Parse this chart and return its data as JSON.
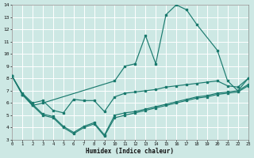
{
  "xlabel": "Humidex (Indice chaleur)",
  "xlim": [
    0,
    23
  ],
  "ylim": [
    3,
    14
  ],
  "xticks": [
    0,
    1,
    2,
    3,
    4,
    5,
    6,
    7,
    8,
    9,
    10,
    11,
    12,
    13,
    14,
    15,
    16,
    17,
    18,
    19,
    20,
    21,
    22,
    23
  ],
  "yticks": [
    3,
    4,
    5,
    6,
    7,
    8,
    9,
    10,
    11,
    12,
    13,
    14
  ],
  "bg_color": "#cde8e4",
  "grid_color": "#b8d8d4",
  "line_color": "#1a7a6e",
  "lines": [
    {
      "x": [
        0,
        1,
        2,
        3,
        10,
        11,
        12,
        13,
        14,
        15,
        16,
        17,
        18,
        20,
        21,
        22,
        23
      ],
      "y": [
        8.2,
        6.7,
        5.8,
        6.0,
        7.8,
        9.0,
        9.2,
        11.5,
        9.2,
        13.2,
        14.0,
        13.6,
        12.4,
        10.3,
        7.8,
        7.0,
        8.0
      ]
    },
    {
      "x": [
        0,
        1,
        2,
        3,
        4,
        5,
        6,
        7,
        8,
        9,
        10,
        11,
        12,
        13,
        14,
        15,
        16,
        17,
        18,
        19,
        20,
        21,
        22,
        23
      ],
      "y": [
        8.2,
        6.8,
        6.0,
        6.2,
        5.4,
        5.2,
        6.3,
        6.2,
        6.2,
        5.3,
        6.5,
        6.8,
        6.9,
        7.0,
        7.1,
        7.3,
        7.4,
        7.5,
        7.6,
        7.7,
        7.8,
        7.4,
        7.3,
        8.0
      ]
    },
    {
      "x": [
        0,
        1,
        2,
        3,
        4,
        5,
        6,
        7,
        8,
        9,
        10,
        11,
        12,
        13,
        14,
        15,
        16,
        17,
        18,
        19,
        20,
        21,
        22,
        23
      ],
      "y": [
        8.2,
        6.7,
        5.8,
        5.0,
        4.8,
        4.0,
        3.5,
        4.0,
        4.3,
        3.3,
        4.8,
        5.0,
        5.2,
        5.4,
        5.6,
        5.8,
        6.0,
        6.2,
        6.4,
        6.5,
        6.7,
        6.8,
        6.9,
        7.4
      ]
    },
    {
      "x": [
        0,
        1,
        2,
        3,
        4,
        5,
        6,
        7,
        8,
        9,
        10,
        11,
        12,
        13,
        14,
        15,
        16,
        17,
        18,
        19,
        20,
        21,
        22,
        23
      ],
      "y": [
        8.2,
        6.7,
        5.9,
        5.1,
        4.9,
        4.1,
        3.6,
        4.1,
        4.4,
        3.4,
        5.0,
        5.2,
        5.3,
        5.5,
        5.7,
        5.9,
        6.1,
        6.3,
        6.5,
        6.6,
        6.8,
        6.9,
        7.0,
        7.5
      ]
    }
  ]
}
